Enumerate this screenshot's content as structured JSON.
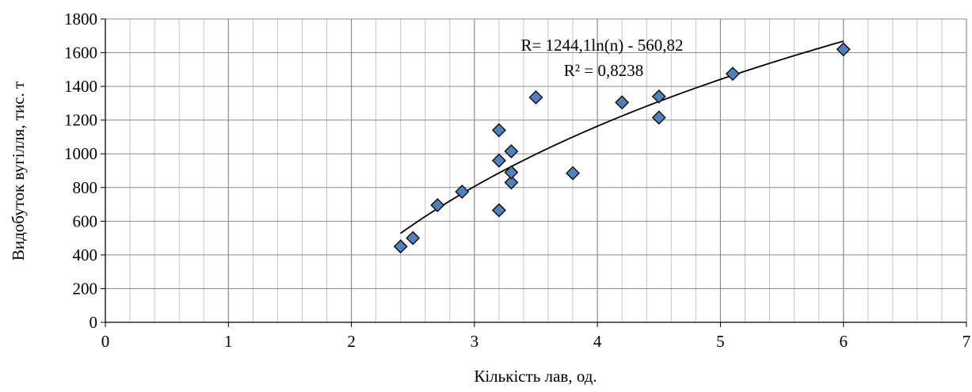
{
  "chart_data": {
    "type": "scatter",
    "xlabel": "Кількість лав, од.",
    "ylabel": "Видобуток вугілля, тис. т",
    "xlim": [
      0,
      7
    ],
    "ylim": [
      0,
      1800
    ],
    "x_ticks": [
      "0",
      "1",
      "2",
      "3",
      "4",
      "5",
      "6",
      "7"
    ],
    "y_ticks": [
      "0",
      "200",
      "400",
      "600",
      "800",
      "1000",
      "1200",
      "1400",
      "1600",
      "1800"
    ],
    "grid": true,
    "legend": "none",
    "marker": "diamond",
    "colors": {
      "marker_fill": "#4f81bd",
      "marker_edge": "#000000",
      "trendline": "#000000",
      "grid": "#bfbfbf"
    },
    "points": [
      {
        "x": 2.4,
        "y": 450
      },
      {
        "x": 2.5,
        "y": 500
      },
      {
        "x": 2.7,
        "y": 695
      },
      {
        "x": 2.9,
        "y": 775
      },
      {
        "x": 3.2,
        "y": 665
      },
      {
        "x": 3.2,
        "y": 960
      },
      {
        "x": 3.2,
        "y": 1140
      },
      {
        "x": 3.3,
        "y": 830
      },
      {
        "x": 3.3,
        "y": 890
      },
      {
        "x": 3.3,
        "y": 1015
      },
      {
        "x": 3.5,
        "y": 1335
      },
      {
        "x": 3.8,
        "y": 885
      },
      {
        "x": 4.2,
        "y": 1305
      },
      {
        "x": 4.5,
        "y": 1215
      },
      {
        "x": 4.5,
        "y": 1340
      },
      {
        "x": 5.1,
        "y": 1475
      },
      {
        "x": 6.0,
        "y": 1620
      }
    ],
    "trendline": {
      "type": "logarithmic",
      "a": 1244.1,
      "b": -560.82,
      "x_range": [
        2.4,
        6.0
      ],
      "equation_label": "R= 1244,1ln(n) - 560,82",
      "r2_label": "R² = 0,8238"
    }
  }
}
